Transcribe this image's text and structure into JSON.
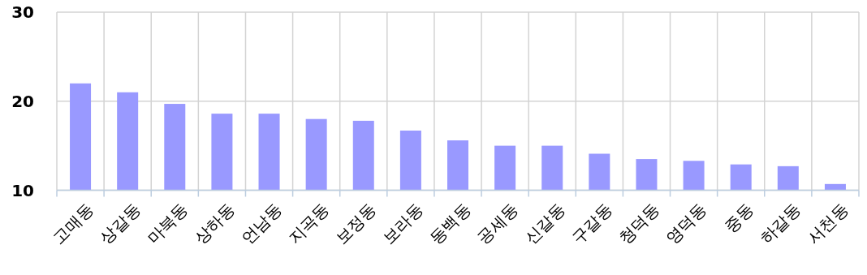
{
  "chart_data": {
    "type": "bar",
    "categories": [
      "고매동",
      "상갈동",
      "마북동",
      "상하동",
      "언남동",
      "지곡동",
      "보정동",
      "보라동",
      "동백동",
      "공세동",
      "신갈동",
      "구갈동",
      "청덕동",
      "영덕동",
      "중동",
      "하갈동",
      "서천동"
    ],
    "values": [
      22,
      21,
      19.7,
      18.6,
      18.6,
      18,
      17.8,
      16.7,
      15.6,
      15,
      15,
      14.1,
      13.5,
      13.3,
      12.9,
      12.7,
      10.7
    ],
    "color": "#9999ff",
    "ylim": [
      10,
      30
    ],
    "yticks": [
      10,
      20,
      30
    ],
    "grid": true
  }
}
